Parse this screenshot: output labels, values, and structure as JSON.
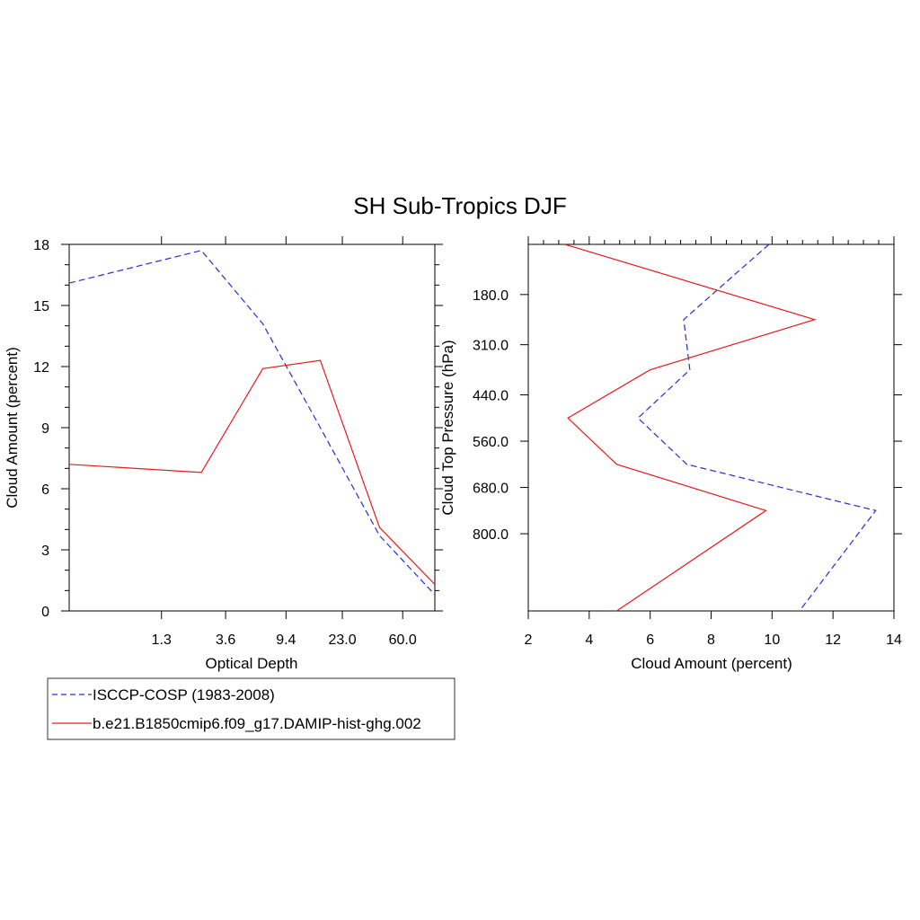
{
  "title": "SH Sub-Tropics DJF",
  "colors": {
    "isccp": "#2b2bd9",
    "model": "#e8191c",
    "frame": "#000000"
  },
  "legend": {
    "entries": [
      {
        "label": "ISCCP-COSP (1983-2008)",
        "style": "dashed",
        "color": "#2b2bd9"
      },
      {
        "label": "b.e21.B1850cmip6.f09_g17.DAMIP-hist-ghg.002",
        "style": "solid",
        "color": "#e8191c"
      }
    ]
  },
  "chart_data": [
    {
      "type": "line",
      "title": "",
      "xlabel": "Optical Depth",
      "ylabel": "Cloud Amount (percent)",
      "x_tick_labels": [
        "1.3",
        "3.6",
        "9.4",
        "23.0",
        "60.0"
      ],
      "y_ticks": [
        "0",
        "3",
        "6",
        "9",
        "12",
        "15",
        "18"
      ],
      "ylim": [
        0,
        18
      ],
      "grid": false,
      "x_points": [
        0.3,
        2.45,
        6.5,
        16.2,
        41.5,
        100
      ],
      "series": [
        {
          "name": "ISCCP-COSP (1983-2008)",
          "values": [
            16.1,
            17.7,
            14.1,
            9.0,
            3.7,
            0.8
          ]
        },
        {
          "name": "b.e21.B1850cmip6.f09_g17.DAMIP-hist-ghg.002",
          "values": [
            7.2,
            6.8,
            11.9,
            12.3,
            4.1,
            1.3
          ]
        }
      ]
    },
    {
      "type": "line",
      "title": "",
      "xlabel": "Cloud Amount (percent)",
      "ylabel": "Cloud Top Pressure (hPa)",
      "x_ticks": [
        "2",
        "4",
        "6",
        "8",
        "10",
        "12",
        "14"
      ],
      "xlim": [
        2,
        14
      ],
      "y_tick_labels": [
        "180.0",
        "310.0",
        "440.0",
        "560.0",
        "680.0",
        "800.0"
      ],
      "ylim_pressure": [
        50,
        1000
      ],
      "grid": false,
      "pressure_levels": [
        50,
        245,
        375,
        500,
        620,
        740,
        1000
      ],
      "series": [
        {
          "name": "ISCCP-COSP (1983-2008)",
          "values": [
            9.9,
            7.1,
            7.3,
            5.6,
            7.2,
            13.4,
            10.9
          ]
        },
        {
          "name": "b.e21.B1850cmip6.f09_g17.DAMIP-hist-ghg.002",
          "values": [
            3.2,
            11.4,
            6.0,
            3.3,
            4.9,
            9.8,
            4.9
          ]
        }
      ]
    }
  ]
}
